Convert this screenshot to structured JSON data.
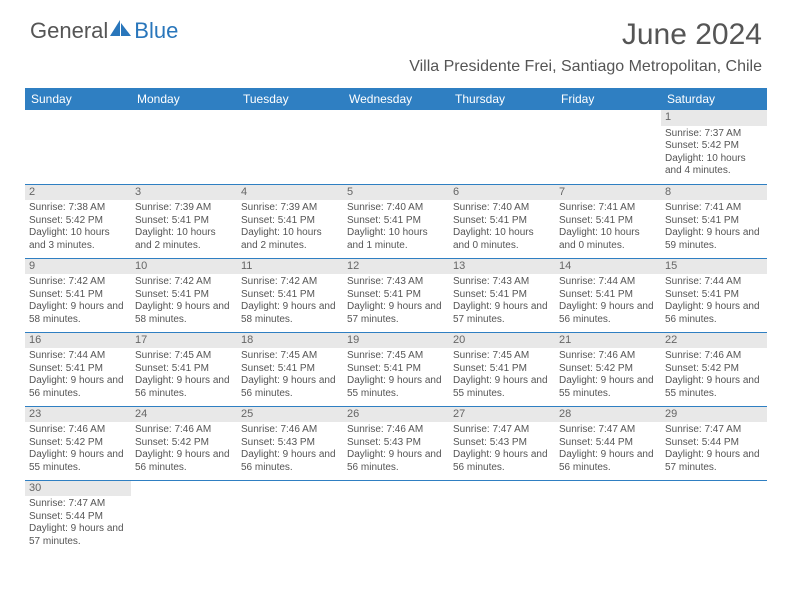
{
  "logo": {
    "general": "General",
    "blue": "Blue"
  },
  "title": "June 2024",
  "location": "Villa Presidente Frei, Santiago Metropolitan, Chile",
  "day_headers": [
    "Sunday",
    "Monday",
    "Tuesday",
    "Wednesday",
    "Thursday",
    "Friday",
    "Saturday"
  ],
  "colors": {
    "header_bg": "#2f7fc2",
    "header_fg": "#ffffff",
    "daynum_bg": "#e8e8e8",
    "text": "#555555",
    "rule": "#2f7fc2"
  },
  "weeks": [
    [
      null,
      null,
      null,
      null,
      null,
      null,
      {
        "n": "1",
        "sunrise": "Sunrise: 7:37 AM",
        "sunset": "Sunset: 5:42 PM",
        "daylight": "Daylight: 10 hours and 4 minutes."
      }
    ],
    [
      {
        "n": "2",
        "sunrise": "Sunrise: 7:38 AM",
        "sunset": "Sunset: 5:42 PM",
        "daylight": "Daylight: 10 hours and 3 minutes."
      },
      {
        "n": "3",
        "sunrise": "Sunrise: 7:39 AM",
        "sunset": "Sunset: 5:41 PM",
        "daylight": "Daylight: 10 hours and 2 minutes."
      },
      {
        "n": "4",
        "sunrise": "Sunrise: 7:39 AM",
        "sunset": "Sunset: 5:41 PM",
        "daylight": "Daylight: 10 hours and 2 minutes."
      },
      {
        "n": "5",
        "sunrise": "Sunrise: 7:40 AM",
        "sunset": "Sunset: 5:41 PM",
        "daylight": "Daylight: 10 hours and 1 minute."
      },
      {
        "n": "6",
        "sunrise": "Sunrise: 7:40 AM",
        "sunset": "Sunset: 5:41 PM",
        "daylight": "Daylight: 10 hours and 0 minutes."
      },
      {
        "n": "7",
        "sunrise": "Sunrise: 7:41 AM",
        "sunset": "Sunset: 5:41 PM",
        "daylight": "Daylight: 10 hours and 0 minutes."
      },
      {
        "n": "8",
        "sunrise": "Sunrise: 7:41 AM",
        "sunset": "Sunset: 5:41 PM",
        "daylight": "Daylight: 9 hours and 59 minutes."
      }
    ],
    [
      {
        "n": "9",
        "sunrise": "Sunrise: 7:42 AM",
        "sunset": "Sunset: 5:41 PM",
        "daylight": "Daylight: 9 hours and 58 minutes."
      },
      {
        "n": "10",
        "sunrise": "Sunrise: 7:42 AM",
        "sunset": "Sunset: 5:41 PM",
        "daylight": "Daylight: 9 hours and 58 minutes."
      },
      {
        "n": "11",
        "sunrise": "Sunrise: 7:42 AM",
        "sunset": "Sunset: 5:41 PM",
        "daylight": "Daylight: 9 hours and 58 minutes."
      },
      {
        "n": "12",
        "sunrise": "Sunrise: 7:43 AM",
        "sunset": "Sunset: 5:41 PM",
        "daylight": "Daylight: 9 hours and 57 minutes."
      },
      {
        "n": "13",
        "sunrise": "Sunrise: 7:43 AM",
        "sunset": "Sunset: 5:41 PM",
        "daylight": "Daylight: 9 hours and 57 minutes."
      },
      {
        "n": "14",
        "sunrise": "Sunrise: 7:44 AM",
        "sunset": "Sunset: 5:41 PM",
        "daylight": "Daylight: 9 hours and 56 minutes."
      },
      {
        "n": "15",
        "sunrise": "Sunrise: 7:44 AM",
        "sunset": "Sunset: 5:41 PM",
        "daylight": "Daylight: 9 hours and 56 minutes."
      }
    ],
    [
      {
        "n": "16",
        "sunrise": "Sunrise: 7:44 AM",
        "sunset": "Sunset: 5:41 PM",
        "daylight": "Daylight: 9 hours and 56 minutes."
      },
      {
        "n": "17",
        "sunrise": "Sunrise: 7:45 AM",
        "sunset": "Sunset: 5:41 PM",
        "daylight": "Daylight: 9 hours and 56 minutes."
      },
      {
        "n": "18",
        "sunrise": "Sunrise: 7:45 AM",
        "sunset": "Sunset: 5:41 PM",
        "daylight": "Daylight: 9 hours and 56 minutes."
      },
      {
        "n": "19",
        "sunrise": "Sunrise: 7:45 AM",
        "sunset": "Sunset: 5:41 PM",
        "daylight": "Daylight: 9 hours and 55 minutes."
      },
      {
        "n": "20",
        "sunrise": "Sunrise: 7:45 AM",
        "sunset": "Sunset: 5:41 PM",
        "daylight": "Daylight: 9 hours and 55 minutes."
      },
      {
        "n": "21",
        "sunrise": "Sunrise: 7:46 AM",
        "sunset": "Sunset: 5:42 PM",
        "daylight": "Daylight: 9 hours and 55 minutes."
      },
      {
        "n": "22",
        "sunrise": "Sunrise: 7:46 AM",
        "sunset": "Sunset: 5:42 PM",
        "daylight": "Daylight: 9 hours and 55 minutes."
      }
    ],
    [
      {
        "n": "23",
        "sunrise": "Sunrise: 7:46 AM",
        "sunset": "Sunset: 5:42 PM",
        "daylight": "Daylight: 9 hours and 55 minutes."
      },
      {
        "n": "24",
        "sunrise": "Sunrise: 7:46 AM",
        "sunset": "Sunset: 5:42 PM",
        "daylight": "Daylight: 9 hours and 56 minutes."
      },
      {
        "n": "25",
        "sunrise": "Sunrise: 7:46 AM",
        "sunset": "Sunset: 5:43 PM",
        "daylight": "Daylight: 9 hours and 56 minutes."
      },
      {
        "n": "26",
        "sunrise": "Sunrise: 7:46 AM",
        "sunset": "Sunset: 5:43 PM",
        "daylight": "Daylight: 9 hours and 56 minutes."
      },
      {
        "n": "27",
        "sunrise": "Sunrise: 7:47 AM",
        "sunset": "Sunset: 5:43 PM",
        "daylight": "Daylight: 9 hours and 56 minutes."
      },
      {
        "n": "28",
        "sunrise": "Sunrise: 7:47 AM",
        "sunset": "Sunset: 5:44 PM",
        "daylight": "Daylight: 9 hours and 56 minutes."
      },
      {
        "n": "29",
        "sunrise": "Sunrise: 7:47 AM",
        "sunset": "Sunset: 5:44 PM",
        "daylight": "Daylight: 9 hours and 57 minutes."
      }
    ],
    [
      {
        "n": "30",
        "sunrise": "Sunrise: 7:47 AM",
        "sunset": "Sunset: 5:44 PM",
        "daylight": "Daylight: 9 hours and 57 minutes."
      },
      null,
      null,
      null,
      null,
      null,
      null
    ]
  ]
}
